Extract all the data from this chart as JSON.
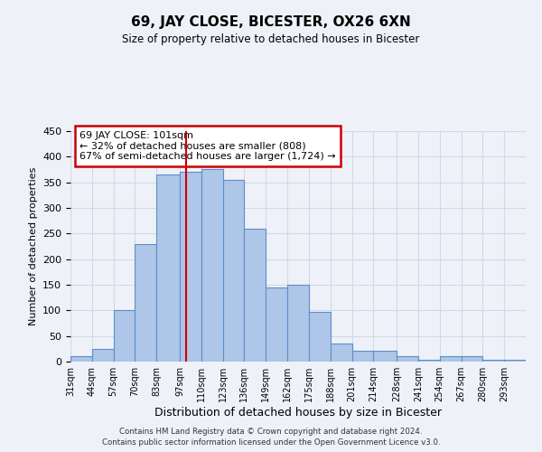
{
  "title": "69, JAY CLOSE, BICESTER, OX26 6XN",
  "subtitle": "Size of property relative to detached houses in Bicester",
  "xlabel": "Distribution of detached houses by size in Bicester",
  "ylabel": "Number of detached properties",
  "footer_line1": "Contains HM Land Registry data © Crown copyright and database right 2024.",
  "footer_line2": "Contains public sector information licensed under the Open Government Licence v3.0.",
  "bar_labels": [
    "31sqm",
    "44sqm",
    "57sqm",
    "70sqm",
    "83sqm",
    "97sqm",
    "110sqm",
    "123sqm",
    "136sqm",
    "149sqm",
    "162sqm",
    "175sqm",
    "188sqm",
    "201sqm",
    "214sqm",
    "228sqm",
    "241sqm",
    "254sqm",
    "267sqm",
    "280sqm",
    "293sqm"
  ],
  "bar_values": [
    10,
    25,
    100,
    230,
    365,
    370,
    375,
    355,
    260,
    145,
    150,
    97,
    35,
    22,
    22,
    10,
    3,
    10,
    10,
    3,
    3
  ],
  "bar_color": "#aec6e8",
  "bar_edge_color": "#5b8fc9",
  "annotation_box_text": "69 JAY CLOSE: 101sqm\n← 32% of detached houses are smaller (808)\n67% of semi-detached houses are larger (1,724) →",
  "annotation_box_color": "#ffffff",
  "annotation_box_edge_color": "#cc0000",
  "vline_x": 101,
  "vline_color": "#cc0000",
  "grid_color": "#d0d8e8",
  "background_color": "#eef2f8",
  "ylim": [
    0,
    450
  ],
  "bin_edges": [
    31,
    44,
    57,
    70,
    83,
    97,
    110,
    123,
    136,
    149,
    162,
    175,
    188,
    201,
    214,
    228,
    241,
    254,
    267,
    280,
    293,
    306
  ]
}
